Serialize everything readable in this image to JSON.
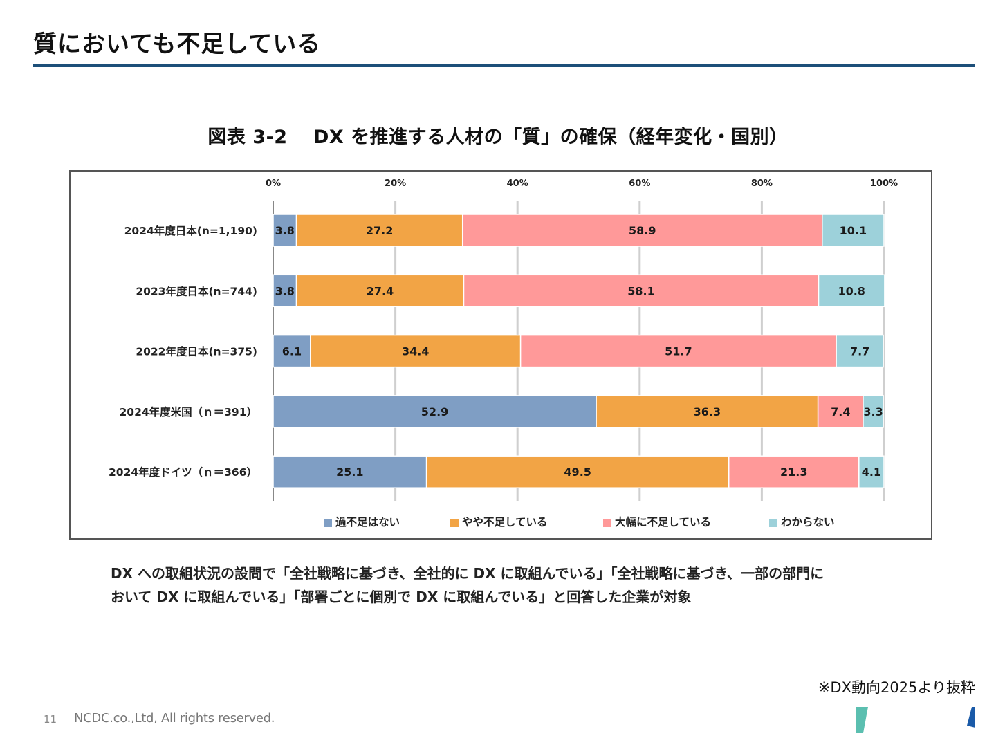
{
  "page": {
    "title": "質においても不足している",
    "note_lines": [
      "DX への取組状況の設問で「全社戦略に基づき、全社的に DX に取組んでいる」「全社戦略に基づき、一部の部門に",
      "おいて DX に取組んでいる」「部署ごとに個別で DX に取組んでいる」と回答した企業が対象"
    ],
    "source": "※DX動向2025より抜粋",
    "footer": {
      "page_number": "11",
      "copyright": "NCDC.co.,Ltd, All rights reserved."
    },
    "accent_color": "#1d4f79",
    "deco_colors": {
      "teal": "#5bbfb0",
      "blue": "#1a5aa8"
    }
  },
  "chart_data": {
    "type": "bar",
    "orientation": "horizontal",
    "stacked": "percent",
    "title": "図表 3-2　 DX を推進する人材の「質」の確保（経年変化・国別）",
    "xlabel": "",
    "ylabel": "",
    "xlim": [
      0,
      100
    ],
    "x_ticks": [
      "0%",
      "20%",
      "40%",
      "60%",
      "80%",
      "100%"
    ],
    "x_tick_values": [
      0,
      20,
      40,
      60,
      80,
      100
    ],
    "grid": true,
    "legend_position": "bottom",
    "categories": [
      "2024年度日本(n=1,190)",
      "2023年度日本(n=744)",
      "2022年度日本(n=375)",
      "2024年度米国（ｎ＝391）",
      "2024年度ドイツ（ｎ＝366）"
    ],
    "series": [
      {
        "name": "過不足はない",
        "color": "#7f9ec4",
        "values": [
          3.8,
          3.8,
          6.1,
          52.9,
          25.1
        ]
      },
      {
        "name": "やや不足している",
        "color": "#f2a445",
        "values": [
          27.2,
          27.4,
          34.4,
          36.3,
          49.5
        ]
      },
      {
        "name": "大幅に不足している",
        "color": "#ff9999",
        "values": [
          58.9,
          58.1,
          51.7,
          7.4,
          21.3
        ]
      },
      {
        "name": "わからない",
        "color": "#9dd1da",
        "values": [
          10.1,
          10.8,
          7.7,
          3.3,
          4.1
        ]
      }
    ]
  }
}
